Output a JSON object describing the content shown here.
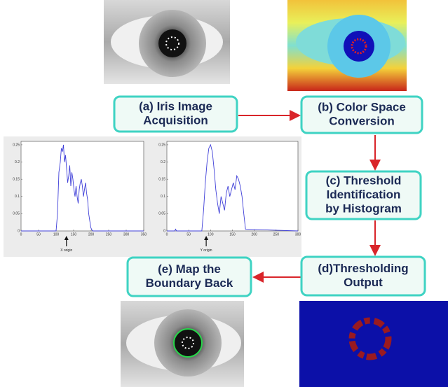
{
  "nodes": [
    {
      "label_lines": [
        "(a) Iris Image",
        "Acquisition"
      ]
    },
    {
      "label_lines": [
        "(b) Color Space",
        "Conversion"
      ]
    },
    {
      "label_lines": [
        "(c) Threshold",
        "Identification",
        "by Histogram"
      ]
    },
    {
      "label_lines": [
        "(d)Thresholding",
        "Output"
      ]
    },
    {
      "label_lines": [
        "(e) Map the",
        "Boundary Back"
      ]
    }
  ],
  "plots": [
    {
      "type": "line",
      "color": "#3f3fd8",
      "annotation": "X origin",
      "x": [
        0,
        100,
        104,
        108,
        112,
        115,
        118,
        121,
        124,
        127,
        130,
        133,
        136,
        139,
        142,
        145,
        148,
        151,
        154,
        157,
        160,
        163,
        166,
        169,
        172,
        175,
        178,
        181,
        184,
        187,
        190,
        193,
        196,
        199,
        202,
        205,
        350
      ],
      "y": [
        0,
        0,
        0.05,
        0.17,
        0.2,
        0.24,
        0.23,
        0.25,
        0.2,
        0.22,
        0.18,
        0.14,
        0.16,
        0.19,
        0.13,
        0.17,
        0.15,
        0.12,
        0.1,
        0.13,
        0.1,
        0.08,
        0.12,
        0.14,
        0.15,
        0.13,
        0.1,
        0.12,
        0.14,
        0.11,
        0.09,
        0.05,
        0.03,
        0.01,
        0.003,
        0,
        0
      ],
      "xlim": [
        0,
        350
      ],
      "ylim": [
        0,
        0.26
      ],
      "xticks": [
        0,
        50,
        100,
        150,
        200,
        250,
        300,
        350
      ],
      "yticks": [
        0,
        0.05,
        0.1,
        0.15,
        0.2,
        0.25
      ]
    },
    {
      "type": "line",
      "color": "#3f3fd8",
      "annotation": "Y origin",
      "x": [
        0,
        18,
        20,
        22,
        80,
        84,
        88,
        92,
        96,
        100,
        104,
        108,
        112,
        116,
        120,
        124,
        128,
        132,
        136,
        140,
        144,
        148,
        152,
        156,
        160,
        164,
        168,
        172,
        176,
        180,
        300
      ],
      "y": [
        0,
        0,
        0.005,
        0,
        0,
        0.06,
        0.14,
        0.2,
        0.24,
        0.25,
        0.23,
        0.18,
        0.12,
        0.08,
        0.05,
        0.1,
        0.08,
        0.06,
        0.11,
        0.13,
        0.1,
        0.12,
        0.14,
        0.12,
        0.16,
        0.15,
        0.13,
        0.1,
        0.05,
        0.005,
        0
      ],
      "xlim": [
        0,
        300
      ],
      "ylim": [
        0,
        0.26
      ],
      "xticks": [
        0,
        50,
        100,
        150,
        200,
        250,
        300
      ],
      "yticks": [
        0,
        0.05,
        0.1,
        0.15,
        0.2,
        0.25
      ]
    }
  ]
}
